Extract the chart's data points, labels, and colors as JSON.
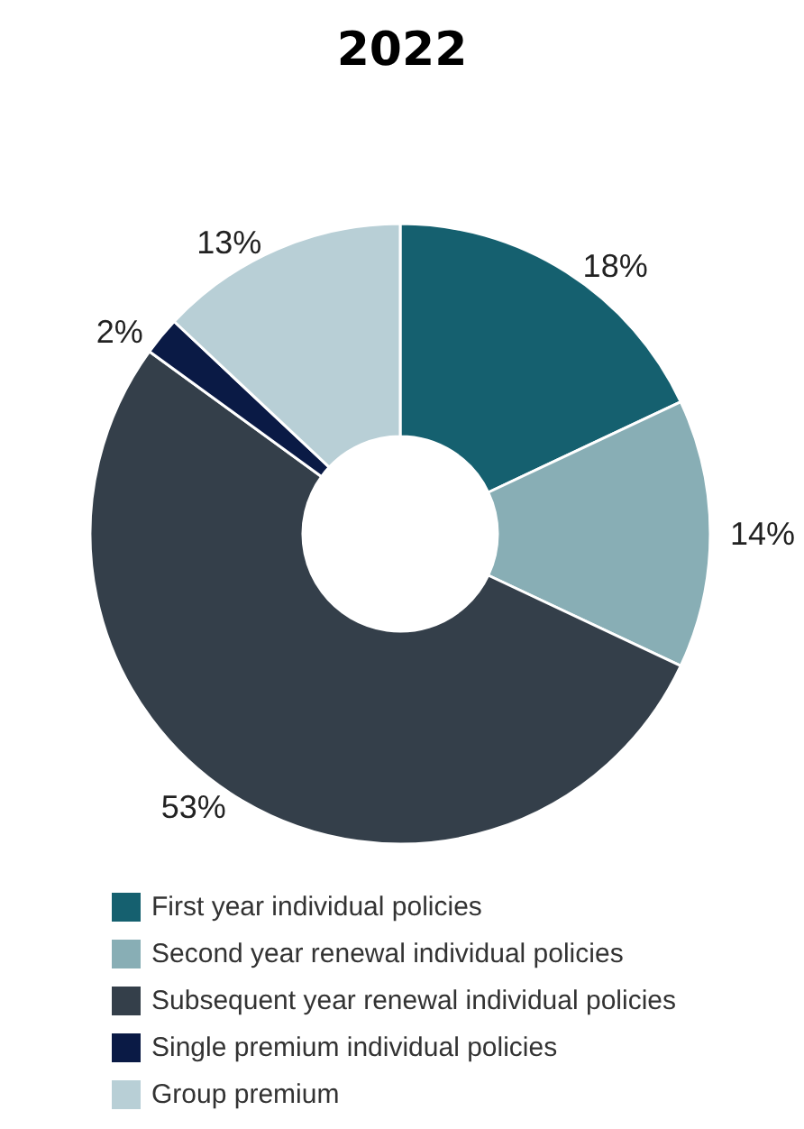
{
  "chart_data": {
    "type": "donut",
    "title": "2022",
    "categories": [
      "First year individual policies",
      "Second year renewal individual policies",
      "Subsequent year renewal individual policies",
      "Single premium individual policies",
      "Group premium"
    ],
    "values": [
      18,
      14,
      53,
      2,
      13
    ],
    "colors": [
      "#15606f",
      "#88aeb5",
      "#343f4a",
      "#0a1a45",
      "#b8cfd6"
    ],
    "value_labels": [
      "18%",
      "14%",
      "53%",
      "2%",
      "13%"
    ],
    "legend": "bottom"
  }
}
